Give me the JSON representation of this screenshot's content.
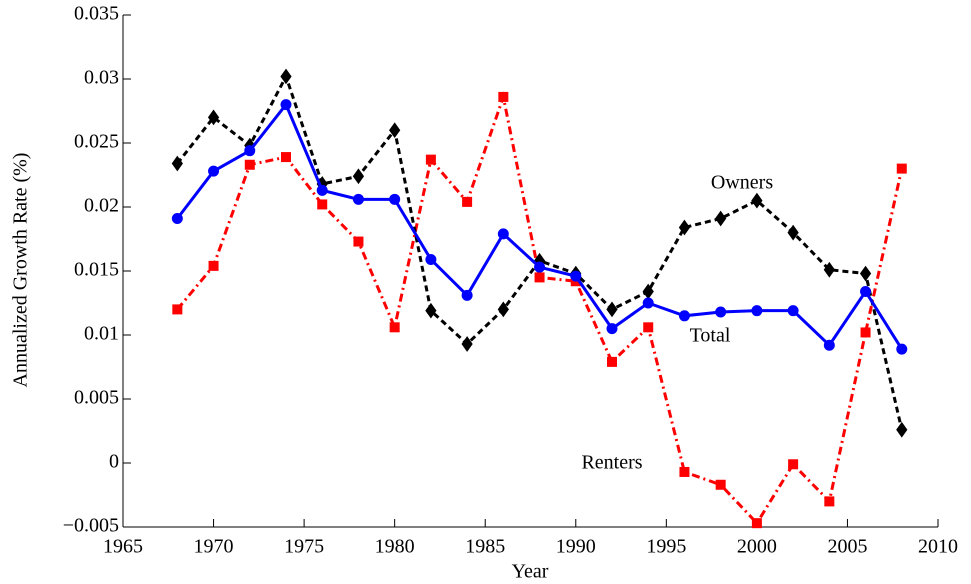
{
  "chart_data": {
    "type": "line",
    "xlabel": "Year",
    "ylabel": "Annualized Growth Rate (%)",
    "x": [
      1968,
      1970,
      1972,
      1974,
      1976,
      1978,
      1980,
      1982,
      1984,
      1986,
      1988,
      1990,
      1992,
      1994,
      1996,
      1998,
      2000,
      2002,
      2004,
      2006,
      2008
    ],
    "series": [
      {
        "name": "Renters",
        "color": "#ff0000",
        "linestyle": "dashdot",
        "marker": "square",
        "values": [
          0.012,
          0.0154,
          0.0233,
          0.0239,
          0.0202,
          0.0173,
          0.0106,
          0.0237,
          0.0204,
          0.0286,
          0.0145,
          0.0142,
          0.0079,
          0.0106,
          -0.0007,
          -0.0017,
          -0.0047,
          -0.0001,
          -0.003,
          0.0102,
          0.023
        ]
      },
      {
        "name": "Owners",
        "color": "#000000",
        "linestyle": "dashed",
        "marker": "diamond",
        "values": [
          0.0234,
          0.027,
          0.0248,
          0.0302,
          0.0218,
          0.0224,
          0.026,
          0.0119,
          0.0093,
          0.012,
          0.0158,
          0.0148,
          0.012,
          0.0134,
          0.0184,
          0.0191,
          0.0205,
          0.018,
          0.0151,
          0.0148,
          0.0026
        ]
      },
      {
        "name": "Total",
        "color": "#0000ff",
        "linestyle": "solid",
        "marker": "circle",
        "values": [
          0.0191,
          0.0228,
          0.0244,
          0.028,
          0.0213,
          0.0206,
          0.0206,
          0.0159,
          0.0131,
          0.0179,
          0.0153,
          0.0146,
          0.0105,
          0.0125,
          0.0115,
          0.0118,
          0.0119,
          0.0119,
          0.0092,
          0.0134,
          0.0089
        ]
      }
    ],
    "xlim": [
      1965,
      2010
    ],
    "xticks": [
      1965,
      1970,
      1975,
      1980,
      1985,
      1990,
      1995,
      2000,
      2005,
      2010
    ],
    "ylim": [
      -0.005,
      0.035
    ],
    "yticks": [
      {
        "value": -0.005,
        "label": "−0.005"
      },
      0,
      0.005,
      0.01,
      0.015,
      0.02,
      0.025,
      0.03,
      0.035
    ],
    "grid": false
  }
}
